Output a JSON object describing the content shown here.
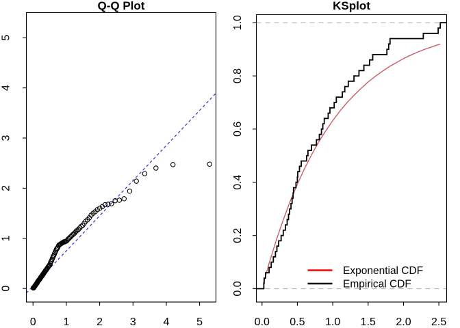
{
  "figure": {
    "background": "#ffffff",
    "axis_color": "#000000",
    "colors": {
      "qq_reference_line": "#3333cc",
      "exponential_curve": "#cd5c68",
      "legend_exponential": "#ff0000",
      "legend_empirical": "#000000",
      "guide_dashed": "#b3b3b3"
    }
  },
  "chart_data": [
    {
      "type": "scatter",
      "title": "Q-Q Plot",
      "xlabel": "",
      "ylabel": "",
      "xlim": [
        -0.2,
        5.49
      ],
      "ylim": [
        -0.27,
        5.5
      ],
      "grid": false,
      "x_ticks": [
        0,
        1,
        2,
        3,
        4,
        5
      ],
      "x_tick_labels": [
        "0",
        "1",
        "2",
        "3",
        "4",
        "5"
      ],
      "y_ticks": [
        0,
        1,
        2,
        3,
        4,
        5
      ],
      "y_tick_labels": [
        "0",
        "1",
        "2",
        "3",
        "4",
        "5"
      ],
      "marker": {
        "shape": "open-circle",
        "radius": 3.2,
        "color": "#000000"
      },
      "reference_line": {
        "intercept": 0.05,
        "slope": 0.7,
        "style": "dashed",
        "color": "#3333cc"
      },
      "points": {
        "x": [
          0.005,
          0.015,
          0.025,
          0.036,
          0.046,
          0.057,
          0.067,
          0.078,
          0.089,
          0.1,
          0.111,
          0.122,
          0.134,
          0.145,
          0.157,
          0.168,
          0.18,
          0.192,
          0.205,
          0.217,
          0.229,
          0.242,
          0.255,
          0.268,
          0.281,
          0.294,
          0.308,
          0.322,
          0.335,
          0.35,
          0.364,
          0.378,
          0.393,
          0.408,
          0.423,
          0.439,
          0.454,
          0.47,
          0.486,
          0.503,
          0.519,
          0.536,
          0.553,
          0.571,
          0.589,
          0.607,
          0.625,
          0.644,
          0.664,
          0.683,
          0.703,
          0.724,
          0.744,
          0.766,
          0.787,
          0.81,
          0.832,
          0.856,
          0.879,
          0.904,
          0.929,
          0.955,
          0.981,
          1.008,
          1.036,
          1.064,
          1.094,
          1.124,
          1.155,
          1.187,
          1.221,
          1.255,
          1.291,
          1.328,
          1.366,
          1.407,
          1.448,
          1.492,
          1.537,
          1.585,
          1.635,
          1.687,
          1.743,
          1.802,
          1.864,
          1.931,
          2.002,
          2.079,
          2.163,
          2.254,
          2.354,
          2.465,
          2.59,
          2.733,
          2.9,
          3.101,
          3.352,
          3.689,
          4.2,
          5.298
        ],
        "y": [
          0.01,
          0.01,
          0.02,
          0.03,
          0.04,
          0.05,
          0.06,
          0.07,
          0.08,
          0.09,
          0.1,
          0.11,
          0.13,
          0.14,
          0.15,
          0.16,
          0.17,
          0.18,
          0.19,
          0.2,
          0.22,
          0.23,
          0.24,
          0.25,
          0.26,
          0.28,
          0.29,
          0.3,
          0.32,
          0.33,
          0.34,
          0.36,
          0.37,
          0.38,
          0.4,
          0.41,
          0.43,
          0.44,
          0.46,
          0.47,
          0.5,
          0.53,
          0.55,
          0.58,
          0.61,
          0.64,
          0.66,
          0.69,
          0.72,
          0.75,
          0.78,
          0.8,
          0.82,
          0.85,
          0.87,
          0.88,
          0.89,
          0.9,
          0.91,
          0.92,
          0.93,
          0.93,
          0.94,
          0.95,
          0.97,
          0.99,
          1.01,
          1.03,
          1.05,
          1.07,
          1.09,
          1.11,
          1.14,
          1.16,
          1.18,
          1.21,
          1.24,
          1.26,
          1.3,
          1.34,
          1.37,
          1.41,
          1.46,
          1.5,
          1.53,
          1.57,
          1.6,
          1.63,
          1.67,
          1.68,
          1.69,
          1.75,
          1.76,
          1.79,
          1.94,
          2.14,
          2.29,
          2.4,
          2.47,
          2.48
        ]
      }
    },
    {
      "type": "line",
      "title": "KSplot",
      "xlabel": "",
      "ylabel": "",
      "xlim": [
        -0.08,
        2.61
      ],
      "ylim": [
        -0.05,
        1.03
      ],
      "grid": false,
      "x_ticks": [
        0,
        0.5,
        1.0,
        1.5,
        2.0,
        2.5
      ],
      "x_tick_labels": [
        "0.0",
        "0.5",
        "1.0",
        "1.5",
        "2.0",
        "2.5"
      ],
      "y_ticks": [
        0,
        0.2,
        0.4,
        0.6,
        0.8,
        1.0
      ],
      "y_tick_labels": [
        "0.0",
        "0.2",
        "0.4",
        "0.6",
        "0.8",
        "1.0"
      ],
      "hlines": [
        {
          "y": 0,
          "style": "dashed",
          "color": "#b3b3b3"
        },
        {
          "y": 1,
          "style": "dashed",
          "color": "#b3b3b3"
        }
      ],
      "series": [
        {
          "name": "Exponential CDF",
          "type": "line",
          "color": "#cd5c68",
          "x": [
            0.02,
            0.1,
            0.2,
            0.3,
            0.4,
            0.5,
            0.6,
            0.7,
            0.8,
            0.9,
            1.0,
            1.1,
            1.2,
            1.3,
            1.4,
            1.5,
            1.6,
            1.7,
            1.8,
            1.9,
            2.0,
            2.1,
            2.2,
            2.3,
            2.4,
            2.5,
            2.52
          ],
          "y": [
            0.02,
            0.095,
            0.181,
            0.259,
            0.33,
            0.393,
            0.451,
            0.503,
            0.551,
            0.593,
            0.632,
            0.667,
            0.699,
            0.727,
            0.753,
            0.777,
            0.798,
            0.817,
            0.835,
            0.85,
            0.865,
            0.878,
            0.889,
            0.9,
            0.909,
            0.918,
            0.92
          ]
        },
        {
          "name": "Empirical CDF",
          "type": "step",
          "color": "#000000",
          "n": 50,
          "values": [
            0.025,
            0.03,
            0.05,
            0.1,
            0.13,
            0.16,
            0.19,
            0.21,
            0.235,
            0.27,
            0.3,
            0.33,
            0.355,
            0.375,
            0.39,
            0.41,
            0.425,
            0.44,
            0.445,
            0.48,
            0.5,
            0.505,
            0.53,
            0.555,
            0.63,
            0.65,
            0.7,
            0.77,
            0.81,
            0.84,
            0.86,
            0.88,
            0.935,
            0.96,
            1.02,
            1.05,
            1.135,
            1.17,
            1.22,
            1.3,
            1.37,
            1.44,
            1.52,
            1.565,
            1.765,
            1.79,
            1.81,
            2.28,
            2.49,
            2.52
          ]
        }
      ],
      "legend": {
        "position": "bottom-right",
        "entries": [
          {
            "label": "Exponential CDF",
            "color": "#ff0000"
          },
          {
            "label": "Empirical CDF",
            "color": "#000000"
          }
        ]
      }
    }
  ]
}
